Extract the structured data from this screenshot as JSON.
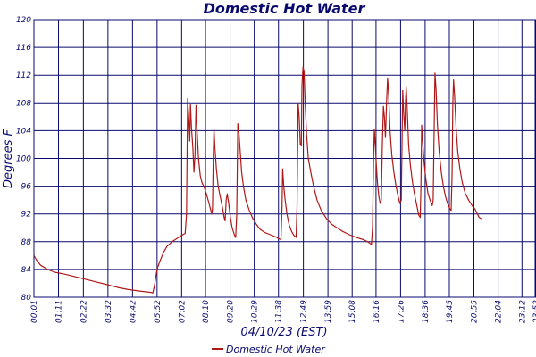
{
  "chart_data": {
    "type": "line",
    "title": "Domestic Hot Water",
    "xlabel": "04/10/23 (EST)",
    "ylabel": "Degrees F",
    "ylim": [
      80,
      120
    ],
    "yticks": [
      80,
      84,
      88,
      92,
      96,
      100,
      104,
      108,
      112,
      116,
      120
    ],
    "xlim_minutes": [
      1,
      1432
    ],
    "xticks": [
      {
        "label": "00:01",
        "minutes": 1
      },
      {
        "label": "01:11",
        "minutes": 71
      },
      {
        "label": "02:22",
        "minutes": 142
      },
      {
        "label": "03:32",
        "minutes": 212
      },
      {
        "label": "04:42",
        "minutes": 282
      },
      {
        "label": "05:52",
        "minutes": 352
      },
      {
        "label": "07:02",
        "minutes": 422
      },
      {
        "label": "08:10",
        "minutes": 490
      },
      {
        "label": "09:20",
        "minutes": 560
      },
      {
        "label": "10:29",
        "minutes": 629
      },
      {
        "label": "11:38",
        "minutes": 698
      },
      {
        "label": "12:49",
        "minutes": 769
      },
      {
        "label": "13:59",
        "minutes": 839
      },
      {
        "label": "15:08",
        "minutes": 908
      },
      {
        "label": "16:16",
        "minutes": 976
      },
      {
        "label": "17:26",
        "minutes": 1046
      },
      {
        "label": "18:36",
        "minutes": 1116
      },
      {
        "label": "19:45",
        "minutes": 1185
      },
      {
        "label": "20:55",
        "minutes": 1255
      },
      {
        "label": "22:04",
        "minutes": 1324
      },
      {
        "label": "23:12",
        "minutes": 1392
      },
      {
        "label": "23:52",
        "minutes": 1432
      }
    ],
    "grid": true,
    "legend_position": "bottom-center",
    "colors": {
      "series": "#b01818",
      "grid": "#0a0a6e",
      "text": "#0a0a6e"
    },
    "series": [
      {
        "name": "Domestic Hot Water",
        "points": [
          [
            1,
            86.0
          ],
          [
            8,
            85.4
          ],
          [
            20,
            84.6
          ],
          [
            40,
            84.0
          ],
          [
            60,
            83.6
          ],
          [
            90,
            83.3
          ],
          [
            130,
            82.8
          ],
          [
            170,
            82.3
          ],
          [
            210,
            81.8
          ],
          [
            240,
            81.4
          ],
          [
            270,
            81.1
          ],
          [
            300,
            80.9
          ],
          [
            335,
            80.7
          ],
          [
            340,
            80.6
          ],
          [
            345,
            81.8
          ],
          [
            352,
            84.0
          ],
          [
            360,
            85.2
          ],
          [
            370,
            86.4
          ],
          [
            380,
            87.3
          ],
          [
            395,
            88.0
          ],
          [
            410,
            88.5
          ],
          [
            425,
            89.0
          ],
          [
            432,
            89.2
          ],
          [
            436,
            92.0
          ],
          [
            439,
            108.6
          ],
          [
            442,
            106.0
          ],
          [
            445,
            102.5
          ],
          [
            447,
            107.8
          ],
          [
            450,
            104.5
          ],
          [
            454,
            101.5
          ],
          [
            457,
            98.0
          ],
          [
            460,
            100.5
          ],
          [
            463,
            107.6
          ],
          [
            466,
            104.0
          ],
          [
            470,
            100.0
          ],
          [
            475,
            97.5
          ],
          [
            480,
            96.5
          ],
          [
            485,
            96.0
          ],
          [
            492,
            95.0
          ],
          [
            500,
            93.5
          ],
          [
            508,
            92.0
          ],
          [
            510,
            92.8
          ],
          [
            512,
            100.0
          ],
          [
            514,
            104.3
          ],
          [
            517,
            101.5
          ],
          [
            521,
            98.5
          ],
          [
            526,
            96.0
          ],
          [
            532,
            94.5
          ],
          [
            538,
            93.0
          ],
          [
            543,
            91.5
          ],
          [
            546,
            91.0
          ],
          [
            549,
            94.0
          ],
          [
            552,
            94.9
          ],
          [
            556,
            93.5
          ],
          [
            561,
            91.5
          ],
          [
            566,
            90.0
          ],
          [
            572,
            89.0
          ],
          [
            576,
            88.6
          ],
          [
            579,
            92.0
          ],
          [
            582,
            105.0
          ],
          [
            585,
            103.8
          ],
          [
            589,
            101.0
          ],
          [
            593,
            98.0
          ],
          [
            598,
            96.0
          ],
          [
            605,
            94.0
          ],
          [
            615,
            92.5
          ],
          [
            625,
            91.3
          ],
          [
            635,
            90.5
          ],
          [
            645,
            89.8
          ],
          [
            660,
            89.3
          ],
          [
            675,
            89.0
          ],
          [
            690,
            88.7
          ],
          [
            700,
            88.4
          ],
          [
            705,
            88.3
          ],
          [
            708,
            93.0
          ],
          [
            710,
            98.5
          ],
          [
            713,
            96.0
          ],
          [
            717,
            94.0
          ],
          [
            722,
            92.0
          ],
          [
            728,
            90.5
          ],
          [
            735,
            89.5
          ],
          [
            742,
            88.9
          ],
          [
            748,
            88.6
          ],
          [
            751,
            93.0
          ],
          [
            754,
            108.0
          ],
          [
            757,
            106.0
          ],
          [
            760,
            102.0
          ],
          [
            763,
            101.8
          ],
          [
            765,
            110.5
          ],
          [
            768,
            113.2
          ],
          [
            771,
            112.5
          ],
          [
            774,
            108.0
          ],
          [
            778,
            103.5
          ],
          [
            783,
            100.0
          ],
          [
            790,
            98.0
          ],
          [
            798,
            96.0
          ],
          [
            808,
            94.0
          ],
          [
            820,
            92.5
          ],
          [
            835,
            91.3
          ],
          [
            850,
            90.5
          ],
          [
            865,
            90.0
          ],
          [
            880,
            89.5
          ],
          [
            900,
            89.0
          ],
          [
            920,
            88.6
          ],
          [
            940,
            88.3
          ],
          [
            952,
            88.0
          ],
          [
            958,
            87.8
          ],
          [
            963,
            87.6
          ],
          [
            966,
            90.0
          ],
          [
            969,
            100.0
          ],
          [
            971,
            104.2
          ],
          [
            974,
            102.0
          ],
          [
            977,
            99.0
          ],
          [
            980,
            96.5
          ],
          [
            984,
            94.5
          ],
          [
            988,
            93.5
          ],
          [
            991,
            94.0
          ],
          [
            994,
            102.0
          ],
          [
            997,
            107.5
          ],
          [
            1000,
            106.0
          ],
          [
            1003,
            103.0
          ],
          [
            1006,
            108.0
          ],
          [
            1009,
            111.6
          ],
          [
            1012,
            109.0
          ],
          [
            1016,
            104.0
          ],
          [
            1021,
            100.5
          ],
          [
            1027,
            98.0
          ],
          [
            1033,
            96.0
          ],
          [
            1039,
            94.5
          ],
          [
            1044,
            93.5
          ],
          [
            1048,
            94.0
          ],
          [
            1050,
            102.0
          ],
          [
            1052,
            109.8
          ],
          [
            1055,
            106.5
          ],
          [
            1058,
            104.0
          ],
          [
            1060,
            108.0
          ],
          [
            1062,
            110.3
          ],
          [
            1065,
            107.0
          ],
          [
            1069,
            102.0
          ],
          [
            1074,
            99.0
          ],
          [
            1080,
            96.5
          ],
          [
            1087,
            94.5
          ],
          [
            1093,
            93.0
          ],
          [
            1098,
            91.8
          ],
          [
            1102,
            91.5
          ],
          [
            1104,
            96.0
          ],
          [
            1106,
            104.8
          ],
          [
            1109,
            102.5
          ],
          [
            1113,
            99.5
          ],
          [
            1118,
            97.0
          ],
          [
            1124,
            95.0
          ],
          [
            1130,
            94.0
          ],
          [
            1136,
            93.2
          ],
          [
            1139,
            94.0
          ],
          [
            1142,
            105.0
          ],
          [
            1144,
            112.3
          ],
          [
            1147,
            110.0
          ],
          [
            1151,
            105.0
          ],
          [
            1156,
            101.0
          ],
          [
            1162,
            98.0
          ],
          [
            1168,
            96.0
          ],
          [
            1174,
            94.5
          ],
          [
            1180,
            93.5
          ],
          [
            1186,
            92.8
          ],
          [
            1190,
            92.5
          ],
          [
            1193,
            98.0
          ],
          [
            1195,
            108.0
          ],
          [
            1197,
            111.3
          ],
          [
            1200,
            109.0
          ],
          [
            1204,
            104.5
          ],
          [
            1209,
            101.0
          ],
          [
            1215,
            98.5
          ],
          [
            1222,
            96.5
          ],
          [
            1230,
            95.0
          ],
          [
            1240,
            94.0
          ],
          [
            1250,
            93.2
          ],
          [
            1258,
            92.7
          ],
          [
            1262,
            92.3
          ],
          [
            1265,
            92.0
          ],
          [
            1270,
            91.5
          ],
          [
            1276,
            91.3
          ]
        ]
      }
    ]
  }
}
